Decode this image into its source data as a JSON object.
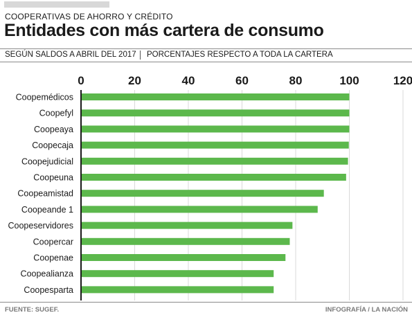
{
  "header": {
    "kicker": "COOPERATIVAS  DE AHORRO Y CRÉDITO",
    "title": "Entidades con más cartera de consumo",
    "subtitle_left": "SEGÚN SALDOS A ABRIL DEL 2017",
    "subtitle_right": "PORCENTAJES RESPECTO A TODA LA CARTERA"
  },
  "footer": {
    "source": "FUENTE: SUGEF.",
    "credit": "INFOGRAFÍA  / LA NACIÓN"
  },
  "colors": {
    "bar": "#5cb84c",
    "axis": "#1a1a1a",
    "grid": "#d9d9d9"
  },
  "chart_data": {
    "type": "bar",
    "orientation": "horizontal",
    "categories": [
      "Coopemédicos",
      "Coopefyl",
      "Coopeaya",
      "Coopecaja",
      "Coopejudicial",
      "Coopeuna",
      "Coopeamistad",
      "Coopeande 1",
      "Coopeservidores",
      "Coopercar",
      "Coopenae",
      "Coopealianza",
      "Coopesparta"
    ],
    "values": [
      100,
      100,
      100,
      99.8,
      99.5,
      98.8,
      90.5,
      88.2,
      78.8,
      77.8,
      76.2,
      71.8,
      71.8
    ],
    "xlim": [
      0,
      120
    ],
    "xticks": [
      "0",
      "20",
      "40",
      "60",
      "80",
      "100",
      "120"
    ],
    "grid": true,
    "xaxis_position": "top"
  }
}
